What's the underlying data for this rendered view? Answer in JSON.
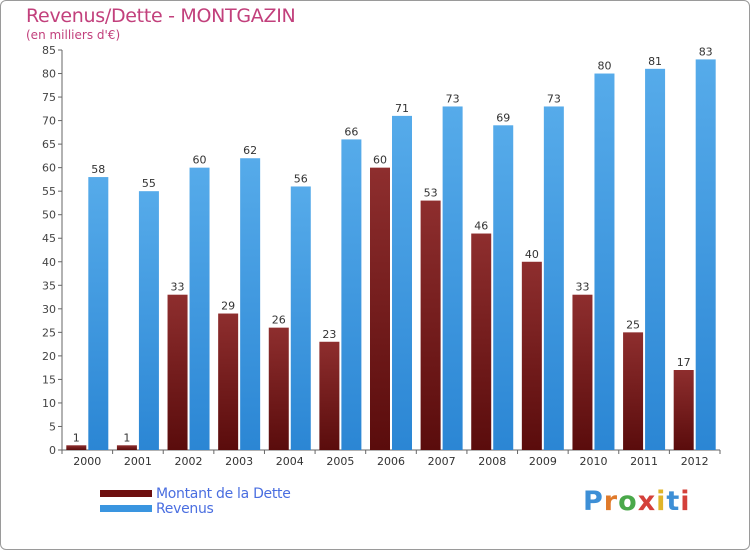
{
  "header": {
    "title": "Revenus/Dette - MONTGAZIN",
    "subtitle": "(en milliers d'€)"
  },
  "legend": [
    {
      "label": "Montant de la Dette",
      "color": "#7a1a1a"
    },
    {
      "label": "Revenus",
      "color": "#3a95e0"
    }
  ],
  "logo": {
    "letters": [
      "P",
      "r",
      "o",
      "x",
      "i",
      "t",
      "i"
    ],
    "colors": [
      "#3d8fd6",
      "#e07a2a",
      "#4aa84a",
      "#d4403a",
      "#e0b52a",
      "#3d8fd6",
      "#d4403a"
    ]
  },
  "chart_data": {
    "type": "bar",
    "title": "Revenus/Dette - MONTGAZIN",
    "subtitle": "(en milliers d'€)",
    "categories": [
      "2000",
      "2001",
      "2002",
      "2003",
      "2004",
      "2005",
      "2006",
      "2007",
      "2008",
      "2009",
      "2010",
      "2011",
      "2012"
    ],
    "series": [
      {
        "name": "Montant de la Dette",
        "color": "#7a1a1a",
        "values": [
          1,
          1,
          33,
          29,
          26,
          23,
          60,
          53,
          46,
          40,
          33,
          25,
          17
        ]
      },
      {
        "name": "Revenus",
        "color": "#3a95e0",
        "values": [
          58,
          55,
          60,
          62,
          56,
          66,
          71,
          73,
          69,
          73,
          80,
          81,
          83
        ]
      }
    ],
    "ylim": [
      0,
      85
    ],
    "yticks": [
      0,
      5,
      10,
      15,
      20,
      25,
      30,
      35,
      40,
      45,
      50,
      55,
      60,
      65,
      70,
      75,
      80,
      85
    ],
    "grid": false,
    "legend_position": "bottom-left"
  }
}
